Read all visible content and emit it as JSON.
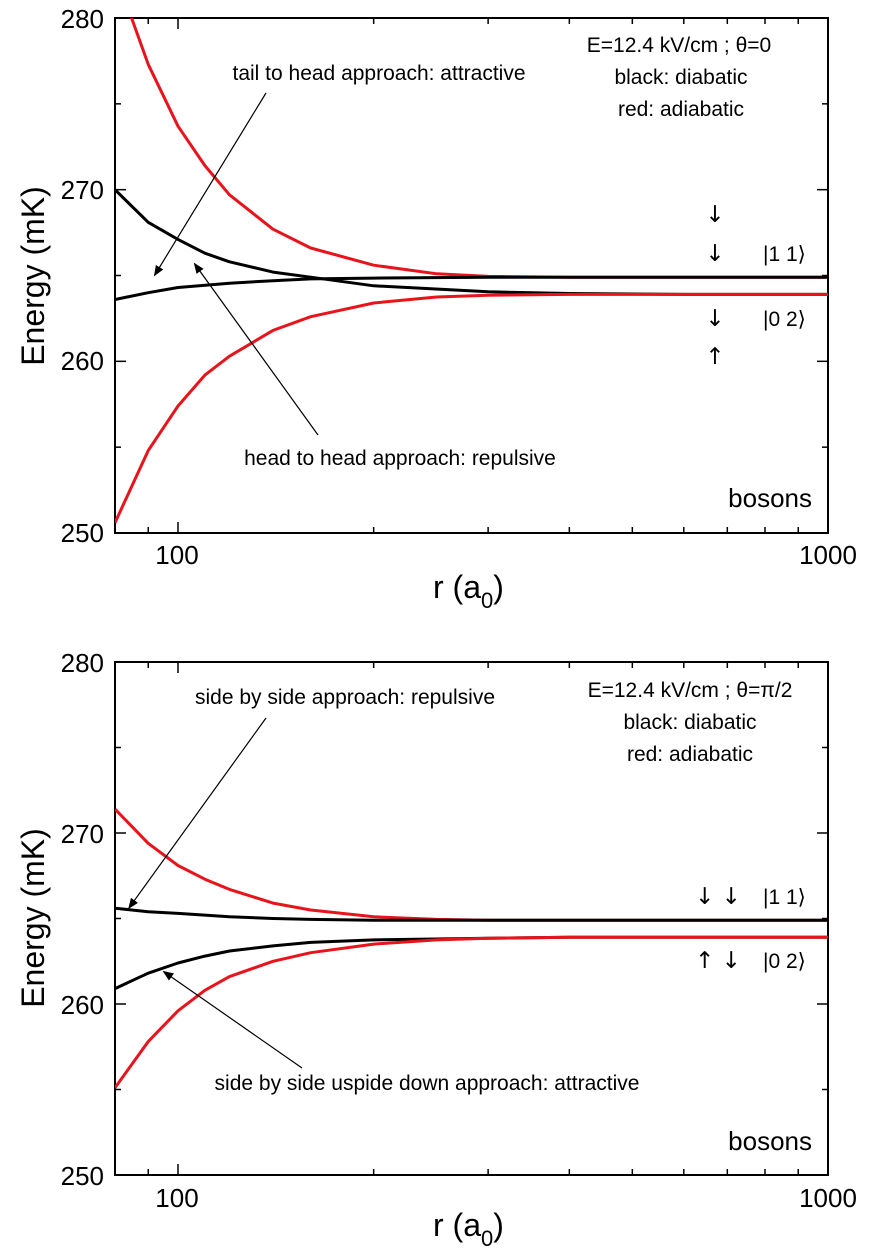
{
  "chart_data": [
    {
      "type": "line",
      "xscale": "log",
      "xlim": [
        80,
        1000
      ],
      "ylim": [
        250,
        280
      ],
      "xlabel": "r (a",
      "xlabel_sub": "0",
      "xlabel_end": ")",
      "ylabel": "Energy (mK)",
      "xticks": [
        100,
        1000
      ],
      "xtick_labels": [
        "100",
        "1000"
      ],
      "yticks": [
        250,
        260,
        270,
        280
      ],
      "ytick_labels": [
        "250",
        "260",
        "270",
        "280"
      ],
      "info_lines": [
        "E=12.4 kV/cm ; θ=0",
        "black: diabatic",
        "red: adiabatic"
      ],
      "tag": "bosons",
      "series": [
        {
          "color": "#e8141c",
          "x": [
            83,
            90,
            100,
            110,
            120,
            140,
            160,
            200,
            250,
            300,
            400,
            600,
            1000
          ],
          "y": [
            281,
            277.3,
            273.7,
            271.4,
            269.7,
            267.7,
            266.6,
            265.6,
            265.1,
            264.95,
            264.9,
            264.9,
            264.9
          ]
        },
        {
          "color": "#000000",
          "x": [
            80,
            90,
            100,
            110,
            120,
            140,
            160,
            200,
            300,
            400,
            600,
            1000
          ],
          "y": [
            270.0,
            268.1,
            267.1,
            266.3,
            265.8,
            265.2,
            264.9,
            264.4,
            264.05,
            263.95,
            263.9,
            263.9
          ]
        },
        {
          "color": "#000000",
          "x": [
            80,
            90,
            100,
            120,
            140,
            160,
            200,
            300,
            400,
            600,
            1000
          ],
          "y": [
            263.6,
            264.0,
            264.3,
            264.55,
            264.7,
            264.8,
            264.85,
            264.9,
            264.9,
            264.9,
            264.9
          ]
        },
        {
          "color": "#e8141c",
          "x": [
            80,
            90,
            100,
            110,
            120,
            140,
            160,
            200,
            250,
            300,
            400,
            600,
            1000
          ],
          "y": [
            250.6,
            254.8,
            257.4,
            259.2,
            260.3,
            261.8,
            262.6,
            263.4,
            263.75,
            263.85,
            263.9,
            263.9,
            263.9
          ]
        }
      ],
      "annotations": [
        {
          "text": "tail to head approach: attractive",
          "arrow_to": [
            92,
            265.0
          ]
        },
        {
          "text": "head to head approach: repulsive",
          "arrow_to": [
            106,
            265.7
          ]
        }
      ],
      "state_labels": [
        {
          "glyphs": "↓",
          "ket": ""
        },
        {
          "glyphs": "↓",
          "ket": "|1 1⟩"
        },
        {
          "glyphs": "↓",
          "ket": "|0 2⟩"
        },
        {
          "glyphs": "↑",
          "ket": ""
        }
      ]
    },
    {
      "type": "line",
      "xscale": "log",
      "xlim": [
        80,
        1000
      ],
      "ylim": [
        250,
        280
      ],
      "xlabel": "r (a",
      "xlabel_sub": "0",
      "xlabel_end": ")",
      "ylabel": "Energy (mK)",
      "xticks": [
        100,
        1000
      ],
      "xtick_labels": [
        "100",
        "1000"
      ],
      "yticks": [
        250,
        260,
        270,
        280
      ],
      "ytick_labels": [
        "250",
        "260",
        "270",
        "280"
      ],
      "info_lines": [
        "E=12.4 kV/cm ; θ=π/2",
        "black: diabatic",
        "red: adiabatic"
      ],
      "tag": "bosons",
      "series": [
        {
          "color": "#e8141c",
          "x": [
            80,
            90,
            100,
            110,
            120,
            140,
            160,
            200,
            250,
            300,
            400,
            600,
            1000
          ],
          "y": [
            271.4,
            269.4,
            268.1,
            267.3,
            266.7,
            265.9,
            265.5,
            265.1,
            264.95,
            264.9,
            264.9,
            264.9,
            264.9
          ]
        },
        {
          "color": "#000000",
          "x": [
            80,
            90,
            100,
            120,
            140,
            160,
            200,
            300,
            400,
            600,
            1000
          ],
          "y": [
            265.6,
            265.4,
            265.3,
            265.1,
            265.0,
            264.95,
            264.9,
            264.9,
            264.9,
            264.9,
            264.9
          ]
        },
        {
          "color": "#000000",
          "x": [
            80,
            90,
            100,
            110,
            120,
            140,
            160,
            200,
            300,
            400,
            600,
            1000
          ],
          "y": [
            260.9,
            261.8,
            262.4,
            262.8,
            263.1,
            263.4,
            263.6,
            263.75,
            263.85,
            263.9,
            263.9,
            263.9
          ]
        },
        {
          "color": "#e8141c",
          "x": [
            80,
            90,
            100,
            110,
            120,
            140,
            160,
            200,
            250,
            300,
            400,
            600,
            1000
          ],
          "y": [
            255.1,
            257.8,
            259.6,
            260.8,
            261.6,
            262.5,
            263.0,
            263.5,
            263.75,
            263.85,
            263.9,
            263.9,
            263.9
          ]
        }
      ],
      "annotations": [
        {
          "text": "side by side approach: repulsive",
          "arrow_to": [
            84,
            265.6
          ]
        },
        {
          "text": "side by side uspide down approach: attractive",
          "arrow_to": [
            95,
            261.9
          ]
        }
      ],
      "state_labels": [
        {
          "glyphs": "↓ ↓",
          "ket": "|1 1⟩"
        },
        {
          "glyphs": "↑ ↓",
          "ket": "|0 2⟩"
        }
      ]
    }
  ]
}
